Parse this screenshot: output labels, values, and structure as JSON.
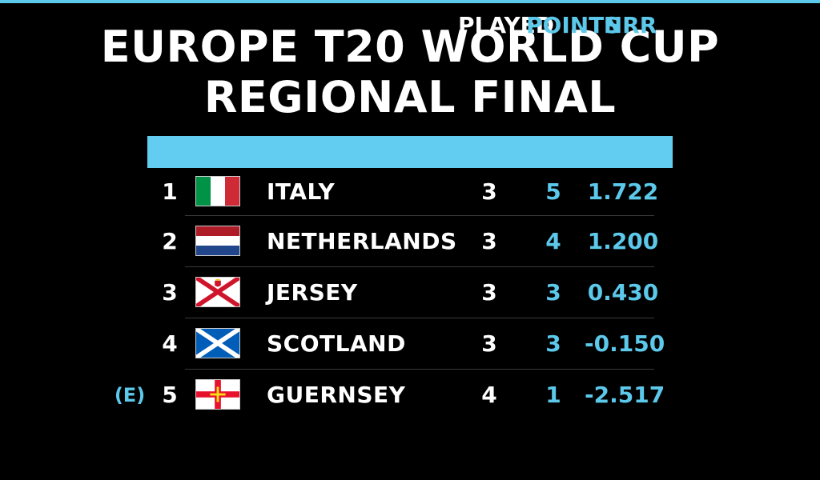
{
  "title_line1": "EUROPE T20 WORLD CUP",
  "title_line2": "REGIONAL FINAL",
  "columns": {
    "played": "PLAYED",
    "points": "POINTS",
    "nrr": "NRR"
  },
  "colors": {
    "accent": "#5cc8ea",
    "header_bar": "#62cdf0",
    "background": "#000000"
  },
  "rows": [
    {
      "rank": "1",
      "team": "ITALY",
      "played": "3",
      "points": "5",
      "nrr": "1.722",
      "status": "",
      "flag_icon": "italy-flag-icon"
    },
    {
      "rank": "2",
      "team": "NETHERLANDS",
      "played": "3",
      "points": "4",
      "nrr": "1.200",
      "status": "",
      "flag_icon": "netherlands-flag-icon"
    },
    {
      "rank": "3",
      "team": "JERSEY",
      "played": "3",
      "points": "3",
      "nrr": "0.430",
      "status": "",
      "flag_icon": "jersey-flag-icon"
    },
    {
      "rank": "4",
      "team": "SCOTLAND",
      "played": "3",
      "points": "3",
      "nrr": "-0.150",
      "status": "",
      "flag_icon": "scotland-flag-icon"
    },
    {
      "rank": "5",
      "team": "GUERNSEY",
      "played": "4",
      "points": "1",
      "nrr": "-2.517",
      "status": "(E)",
      "flag_icon": "guernsey-flag-icon"
    }
  ]
}
